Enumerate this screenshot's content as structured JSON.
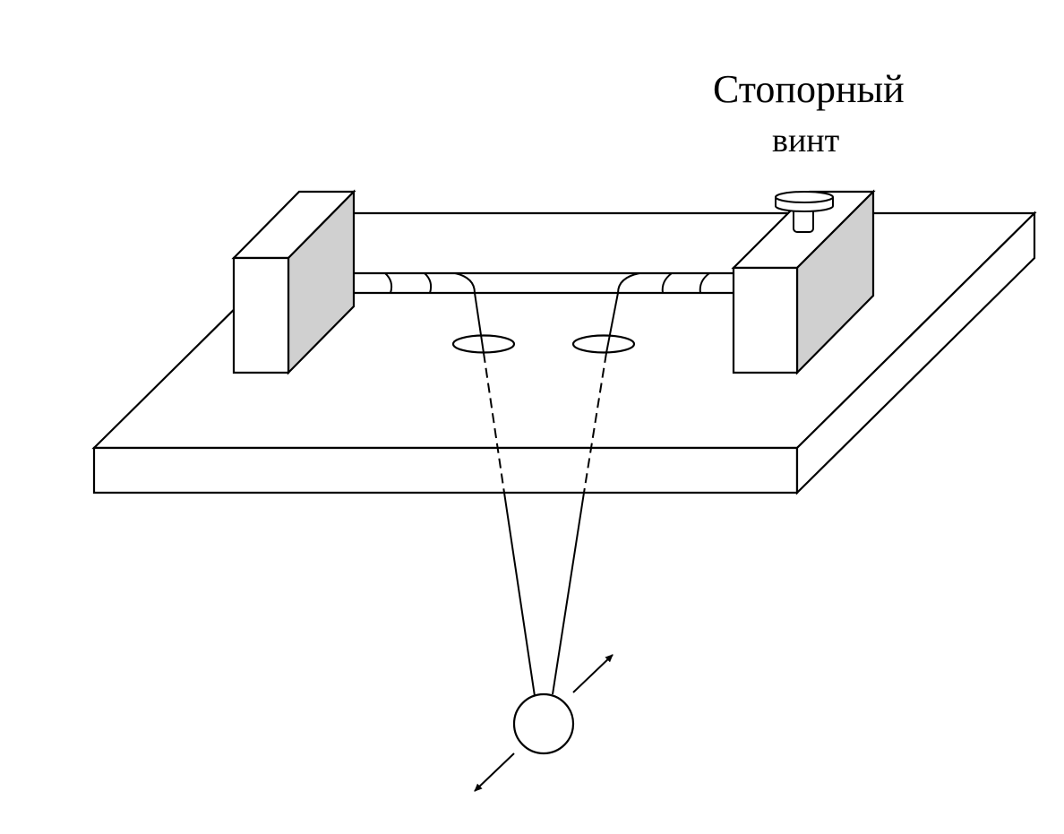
{
  "labels": {
    "lock_screw_line1": "Стопорный",
    "lock_screw_line2": "винт"
  },
  "colors": {
    "stroke": "#000000",
    "background": "#ffffff",
    "block_side": "#d0d0d0"
  }
}
